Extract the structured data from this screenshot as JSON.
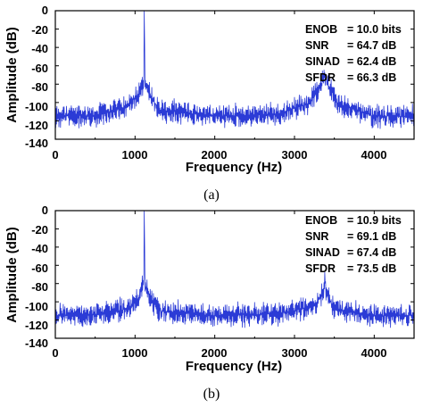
{
  "chart_data": [
    {
      "type": "line",
      "panel_label": "(a)",
      "xlabel": "Frequency (Hz)",
      "ylabel": "Amplitude (dB)",
      "xlim": [
        0,
        4500
      ],
      "ylim": [
        -140,
        0
      ],
      "xticks": [
        "0",
        "1000",
        "2000",
        "3000",
        "4000"
      ],
      "yticks": [
        "0",
        "-20",
        "-40",
        "-60",
        "-80",
        "-100",
        "-120",
        "-140"
      ],
      "grid": false,
      "color": "#2b3bd6",
      "series": [
        {
          "x": [
            0,
            500,
            900,
            1050,
            1110,
            1115,
            1125,
            1180,
            1300,
            2000,
            2800,
            3200,
            3340,
            3380,
            3420,
            3550,
            4000,
            4500
          ],
          "y": [
            -115,
            -114,
            -105,
            -90,
            -75,
            0,
            -75,
            -90,
            -108,
            -115,
            -113,
            -100,
            -80,
            -70,
            -80,
            -102,
            -115,
            -115
          ]
        }
      ],
      "metrics": [
        {
          "name": "ENOB",
          "value": "= 10.0 bits"
        },
        {
          "name": "SNR",
          "value": "= 64.7 dB"
        },
        {
          "name": "SINAD",
          "value": "= 62.4 dB"
        },
        {
          "name": "SFDR",
          "value": "= 66.3 dB"
        }
      ]
    },
    {
      "type": "line",
      "panel_label": "(b)",
      "xlabel": "Frequency (Hz)",
      "ylabel": "Amplitude (dB)",
      "xlim": [
        0,
        4500
      ],
      "ylim": [
        -140,
        0
      ],
      "xticks": [
        "0",
        "1000",
        "2000",
        "3000",
        "4000"
      ],
      "yticks": [
        "0",
        "-20",
        "-40",
        "-60",
        "-80",
        "-100",
        "-120",
        "-140"
      ],
      "grid": false,
      "color": "#2b3bd6",
      "series": [
        {
          "x": [
            0,
            500,
            900,
            1050,
            1110,
            1115,
            1125,
            1180,
            1300,
            2000,
            2800,
            3250,
            3360,
            3380,
            3400,
            3500,
            4000,
            4500
          ],
          "y": [
            -115,
            -114,
            -108,
            -95,
            -80,
            0,
            -80,
            -95,
            -110,
            -115,
            -113,
            -105,
            -90,
            -75,
            -90,
            -108,
            -115,
            -115
          ]
        }
      ],
      "metrics": [
        {
          "name": "ENOB",
          "value": "= 10.9 bits"
        },
        {
          "name": "SNR",
          "value": "= 69.1 dB"
        },
        {
          "name": "SINAD",
          "value": "= 67.4 dB"
        },
        {
          "name": "SFDR",
          "value": "= 73.5 dB"
        }
      ]
    }
  ]
}
